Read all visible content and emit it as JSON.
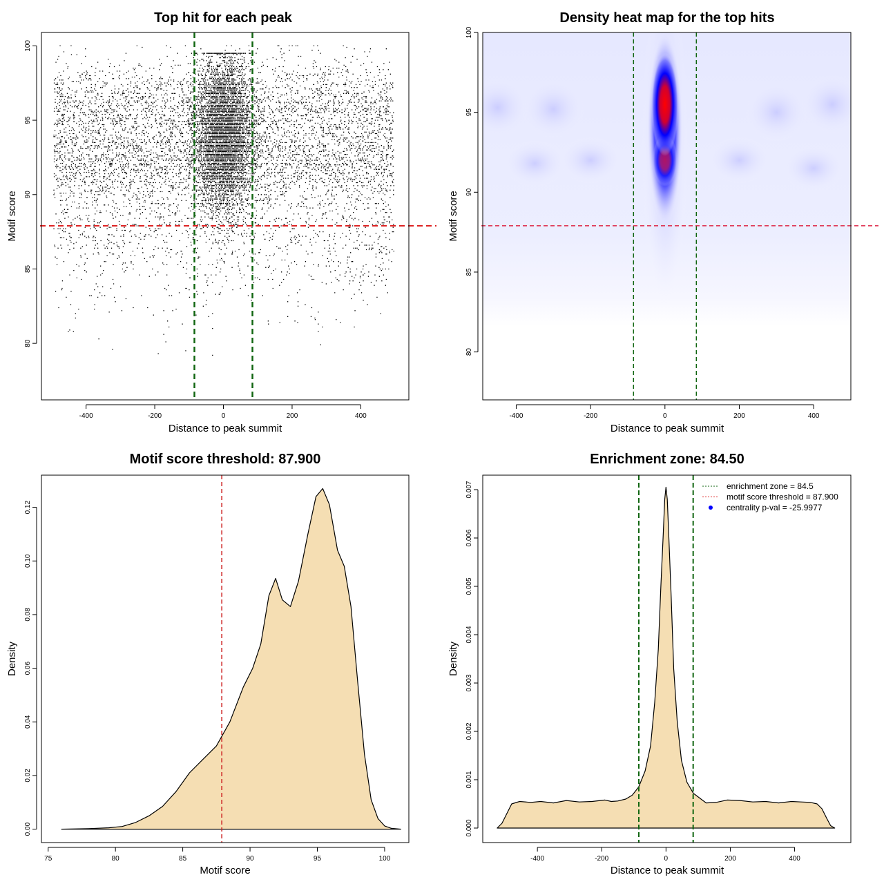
{
  "chart_data": [
    {
      "type": "scatter",
      "title": "Top hit for each peak",
      "xlabel": "Distance to peak summit",
      "ylabel": "Motif score",
      "xlim": [
        -530,
        540
      ],
      "ylim": [
        76.2,
        100.9
      ],
      "xticks": [
        -400,
        -200,
        0,
        200,
        400
      ],
      "yticks": [
        80,
        85,
        90,
        95,
        100
      ],
      "point_count_estimate": 15000,
      "background": {
        "x_range": [
          -495,
          495
        ],
        "y_range": [
          80,
          100
        ]
      },
      "central_cluster": {
        "x_center": 0,
        "x_spread": 40,
        "y_range": [
          86,
          99.5
        ]
      },
      "colors": {
        "points": "#000000",
        "threshold": "#dd2222",
        "zone": "#116611"
      },
      "reference_lines": {
        "horizontal": 87.9,
        "vertical": [
          -84.5,
          84.5
        ]
      }
    },
    {
      "type": "heatmap",
      "title": "Density heat map for the top hits",
      "xlabel": "Distance to peak summit",
      "ylabel": "Motif score",
      "xlim": [
        -490,
        500
      ],
      "ylim": [
        77,
        100
      ],
      "xticks": [
        -400,
        -200,
        0,
        200,
        400
      ],
      "yticks": [
        80,
        85,
        90,
        95,
        100
      ],
      "peak_location": {
        "x": 0,
        "y": 95.5
      },
      "colors": {
        "low": "#ffffff",
        "mid": "#0000ff",
        "high": "#ff0000",
        "threshold": "#dd2244",
        "zone": "#116611"
      },
      "reference_lines": {
        "horizontal": 87.9,
        "vertical": [
          -84.5,
          84.5
        ]
      }
    },
    {
      "type": "area",
      "title": "Motif score threshold: 87.900",
      "xlabel": "Motif score",
      "ylabel": "Density",
      "xlim": [
        74.5,
        101.8
      ],
      "ylim": [
        -0.005,
        0.132
      ],
      "xticks": [
        75,
        80,
        85,
        90,
        95,
        100
      ],
      "yticks": [
        0.0,
        0.02,
        0.04,
        0.06,
        0.08,
        0.1,
        0.12
      ],
      "x": [
        76,
        78,
        79.5,
        80.5,
        81.5,
        82.5,
        83.5,
        84.5,
        85.5,
        86.5,
        87.5,
        88.5,
        89.5,
        90.2,
        90.8,
        91.4,
        91.9,
        92.4,
        93.0,
        93.6,
        94.3,
        94.9,
        95.4,
        95.9,
        96.5,
        97.0,
        97.5,
        98.0,
        98.5,
        99.0,
        99.5,
        100.0,
        100.5,
        101.2
      ],
      "values": [
        0.0,
        0.0002,
        0.0005,
        0.001,
        0.0025,
        0.005,
        0.0085,
        0.014,
        0.021,
        0.026,
        0.031,
        0.04,
        0.053,
        0.06,
        0.069,
        0.087,
        0.0935,
        0.0855,
        0.083,
        0.0925,
        0.11,
        0.124,
        0.127,
        0.121,
        0.104,
        0.098,
        0.083,
        0.055,
        0.028,
        0.011,
        0.004,
        0.0012,
        0.0003,
        0.0
      ],
      "colors": {
        "fill": "#f5deb3",
        "line": "#000000",
        "threshold": "#cc2222"
      },
      "reference_lines": {
        "vertical": [
          87.9
        ]
      }
    },
    {
      "type": "area",
      "title": "Enrichment zone: 84.50",
      "xlabel": "Distance to peak summit",
      "ylabel": "Density",
      "xlim": [
        -570,
        575
      ],
      "ylim": [
        -0.0003,
        0.0073
      ],
      "xticks": [
        -400,
        -200,
        0,
        200,
        400
      ],
      "yticks": [
        0.0,
        0.001,
        0.002,
        0.003,
        0.004,
        0.005,
        0.006,
        0.007
      ],
      "x": [
        -525,
        -510,
        -495,
        -480,
        -455,
        -420,
        -390,
        -350,
        -310,
        -270,
        -230,
        -190,
        -170,
        -150,
        -125,
        -105,
        -85,
        -65,
        -48,
        -35,
        -24,
        -16,
        -9,
        -4,
        0,
        4,
        9,
        16,
        24,
        35,
        48,
        65,
        85,
        105,
        125,
        155,
        190,
        230,
        270,
        310,
        350,
        390,
        420,
        450,
        470,
        485,
        500,
        512,
        525
      ],
      "values": [
        0.0,
        0.0001,
        0.0003,
        0.0005,
        0.00055,
        0.00053,
        0.00055,
        0.00052,
        0.00057,
        0.00054,
        0.00055,
        0.00058,
        0.00055,
        0.00056,
        0.0006,
        0.00068,
        0.00085,
        0.00118,
        0.0017,
        0.0026,
        0.0037,
        0.005,
        0.006,
        0.0068,
        0.00705,
        0.0068,
        0.006,
        0.0048,
        0.0033,
        0.0022,
        0.0014,
        0.00095,
        0.00072,
        0.00062,
        0.00052,
        0.00053,
        0.00058,
        0.00057,
        0.00054,
        0.00055,
        0.00052,
        0.00055,
        0.00054,
        0.00053,
        0.0005,
        0.0004,
        0.0002,
        5e-05,
        0.0
      ],
      "colors": {
        "fill": "#f5deb3",
        "line": "#000000",
        "zone": "#116611",
        "legend_point": "#0000ff"
      },
      "reference_lines": {
        "vertical": [
          -84.5,
          84.5
        ]
      },
      "legend": {
        "position": "top-right",
        "entries": [
          {
            "label": "enrichment zone = 84.5",
            "style": "dotted-green"
          },
          {
            "label": "motif score threshold = 87.900",
            "style": "dotted-red"
          },
          {
            "label": "centrality p-val = -25.9977",
            "style": "blue-point"
          }
        ]
      }
    }
  ]
}
